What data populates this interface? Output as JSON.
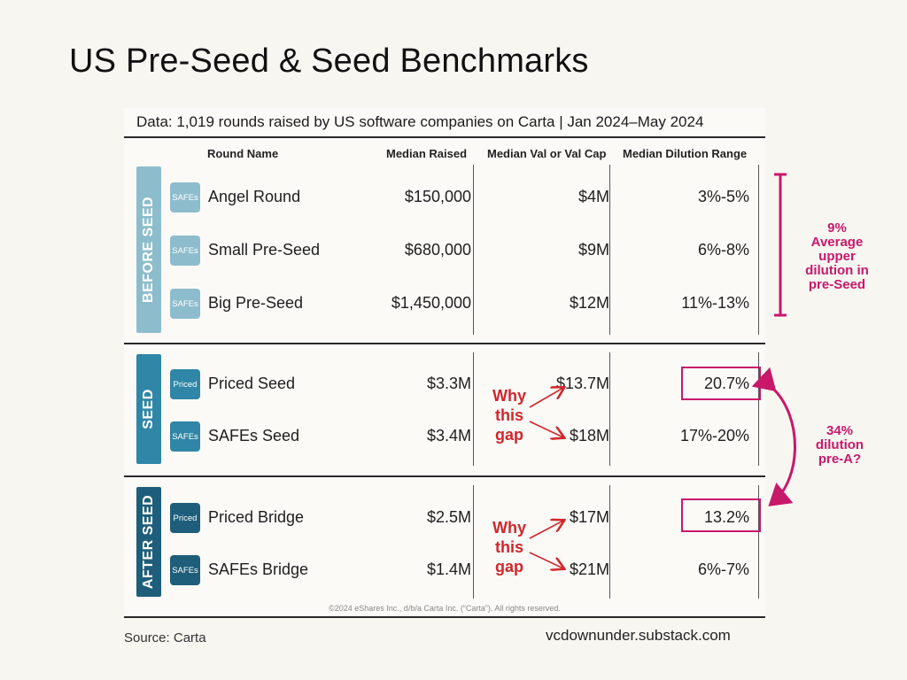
{
  "title": "US Pre-Seed & Seed Benchmarks",
  "source": "Source: Carta",
  "site": "vcdownunder.substack.com",
  "chart_data": {
    "type": "table",
    "caption": "Data: 1,019 rounds raised by US software companies on Carta | Jan 2024–May 2024",
    "columns": [
      "Round Name",
      "Median Raised",
      "Median Val or Val Cap",
      "Median Dilution Range"
    ],
    "groups": [
      {
        "name": "BEFORE SEED",
        "color": "#8dbdcc",
        "tag_color": "#8dbdcc",
        "rows": [
          {
            "tag": "SAFEs",
            "round": "Angel Round",
            "raised": "$150,000",
            "valuation": "$4M",
            "dilution": "3%-5%"
          },
          {
            "tag": "SAFEs",
            "round": "Small Pre-Seed",
            "raised": "$680,000",
            "valuation": "$9M",
            "dilution": "6%-8%"
          },
          {
            "tag": "SAFEs",
            "round": "Big Pre-Seed",
            "raised": "$1,450,000",
            "valuation": "$12M",
            "dilution": "11%-13%"
          }
        ]
      },
      {
        "name": "SEED",
        "color": "#2f86a6",
        "tag_color": "#2f86a6",
        "rows": [
          {
            "tag": "Priced",
            "round": "Priced Seed",
            "raised": "$3.3M",
            "valuation": "$13.7M",
            "dilution": "20.7%"
          },
          {
            "tag": "SAFEs",
            "round": "SAFEs Seed",
            "raised": "$3.4M",
            "valuation": "$18M",
            "dilution": "17%-20%"
          }
        ]
      },
      {
        "name": "AFTER SEED",
        "color": "#1e5e7a",
        "tag_color": "#1e5e7a",
        "rows": [
          {
            "tag": "Priced",
            "round": "Priced Bridge",
            "raised": "$2.5M",
            "valuation": "$17M",
            "dilution": "13.2%"
          },
          {
            "tag": "SAFEs",
            "round": "SAFEs Bridge",
            "raised": "$1.4M",
            "valuation": "$21M",
            "dilution": "6%-7%"
          }
        ]
      }
    ],
    "annotations": {
      "why_gap": [
        "Why",
        "this",
        "gap"
      ],
      "note_preseed": [
        "9%",
        "Average",
        "upper",
        "dilution in",
        "pre-Seed"
      ],
      "note_preA": [
        "34%",
        "dilution",
        "pre-A?"
      ],
      "highlight_color": "#c8186a",
      "why_color": "#d2262a"
    },
    "copyright": "©2024 eShares Inc., d/b/a Carta Inc. (“Carta”). All rights reserved."
  }
}
